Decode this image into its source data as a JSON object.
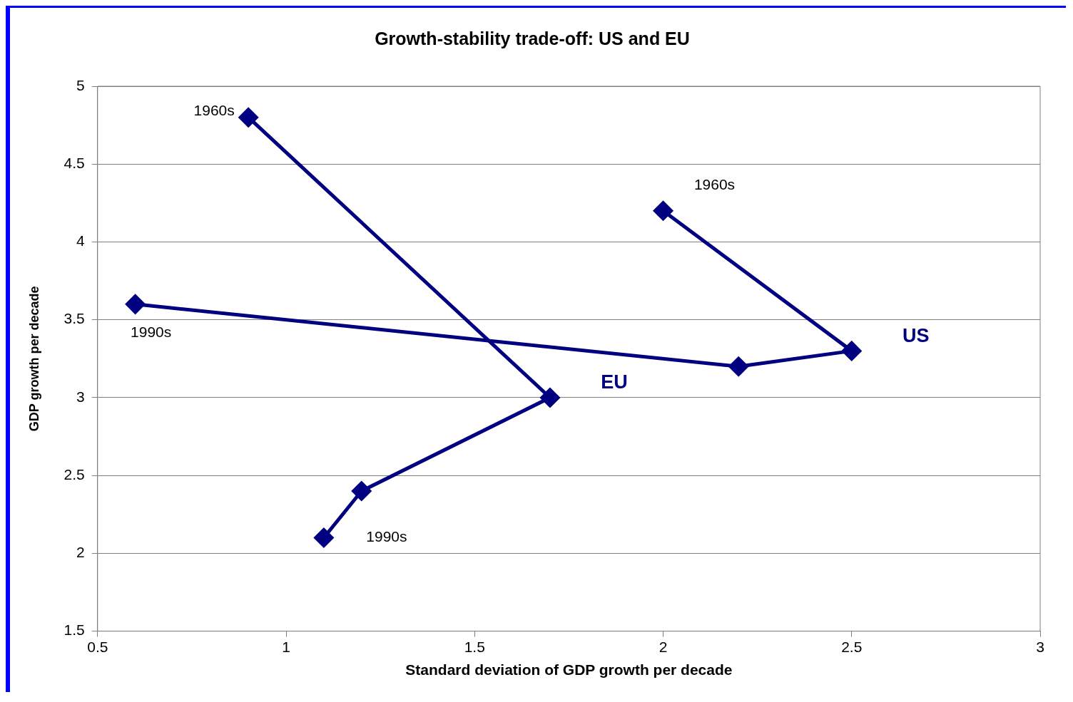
{
  "chart_data": {
    "type": "line",
    "title": "Growth-stability trade-off: US and EU",
    "xlabel": "Standard deviation of GDP growth per decade",
    "ylabel": "GDP growth per decade",
    "series": [
      {
        "name": "EU",
        "color": "#000080",
        "x": [
          0.9,
          1.7,
          1.2,
          1.1
        ],
        "values": [
          4.8,
          3.0,
          2.4,
          2.1
        ]
      },
      {
        "name": "US",
        "color": "#000080",
        "x": [
          2.0,
          2.5,
          2.2,
          0.6
        ],
        "values": [
          4.2,
          3.3,
          3.2,
          3.6
        ]
      }
    ],
    "annotations": [
      {
        "text": "1960s",
        "x": 0.9,
        "y": 4.8
      },
      {
        "text": "1960s",
        "x": 2.0,
        "y": 4.2
      },
      {
        "text": "1990s",
        "x": 1.1,
        "y": 2.1
      },
      {
        "text": "1990s",
        "x": 0.6,
        "y": 3.6
      }
    ],
    "xlim": [
      0.5,
      3
    ],
    "xticks": [
      0.5,
      1,
      1.5,
      2,
      2.5,
      3
    ],
    "ylim": [
      1.5,
      5
    ],
    "yticks": [
      1.5,
      2,
      2.5,
      3,
      3.5,
      4,
      4.5,
      5
    ],
    "grid": "y",
    "marker": "diamond",
    "line_style": "solid",
    "legend": false
  }
}
